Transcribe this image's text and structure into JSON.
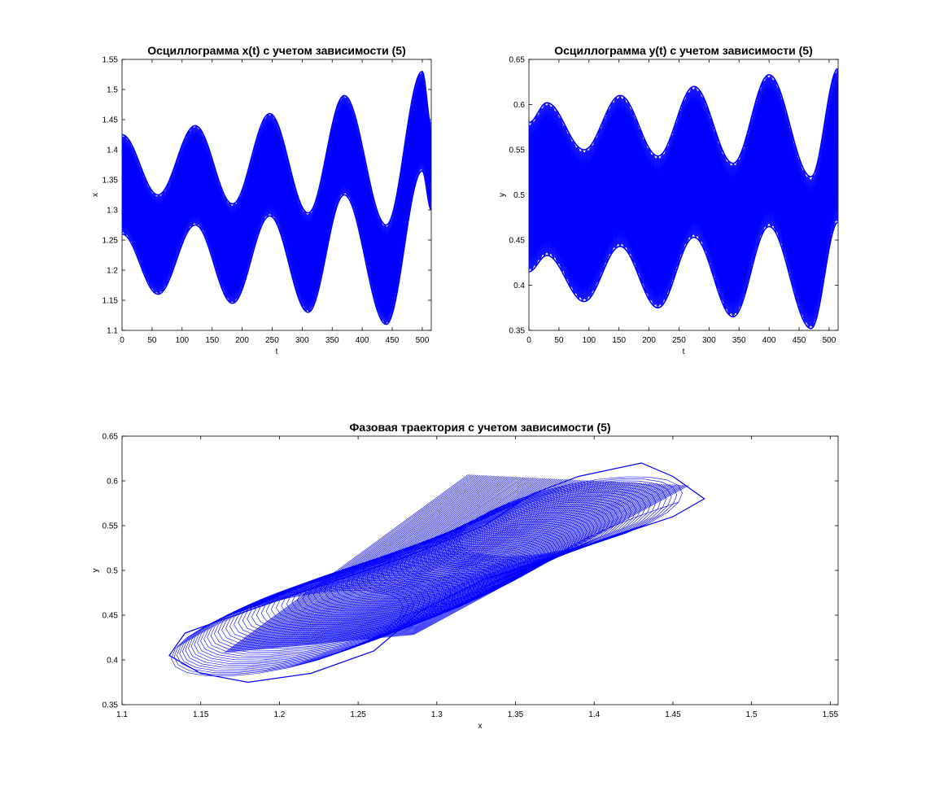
{
  "chart_data": [
    {
      "id": "xt",
      "type": "line",
      "title": "Осциллограмма x(t) с учетом зависимости (5)",
      "xlabel": "t",
      "ylabel": "x",
      "xlim": [
        0,
        515
      ],
      "ylim": [
        1.1,
        1.55
      ],
      "xticks": [
        0,
        50,
        100,
        150,
        200,
        250,
        300,
        350,
        400,
        450,
        500
      ],
      "yticks": [
        1.1,
        1.15,
        1.2,
        1.25,
        1.3,
        1.35,
        1.4,
        1.45,
        1.5,
        1.55
      ],
      "ytick_labels": [
        "1.1",
        "1.15",
        "1.2",
        "1.25",
        "1.3",
        "1.35",
        "1.4",
        "1.45",
        "1.5",
        "1.55"
      ],
      "series_color": "#0000ff",
      "envelope": {
        "t": [
          0,
          60,
          122,
          184,
          246,
          310,
          370,
          440,
          500,
          515
        ],
        "upper": [
          1.425,
          1.325,
          1.44,
          1.31,
          1.46,
          1.295,
          1.49,
          1.275,
          1.53,
          1.44
        ],
        "lower": [
          1.26,
          1.16,
          1.275,
          1.145,
          1.29,
          1.13,
          1.325,
          1.11,
          1.365,
          1.3
        ]
      }
    },
    {
      "id": "yt",
      "type": "line",
      "title": "Осциллограмма y(t) с учетом зависимости (5)",
      "xlabel": "t",
      "ylabel": "y",
      "xlim": [
        0,
        515
      ],
      "ylim": [
        0.35,
        0.65
      ],
      "xticks": [
        0,
        50,
        100,
        150,
        200,
        250,
        300,
        350,
        400,
        450,
        500
      ],
      "yticks": [
        0.35,
        0.4,
        0.45,
        0.5,
        0.55,
        0.6,
        0.65
      ],
      "ytick_labels": [
        "0.35",
        "0.4",
        "0.45",
        "0.5",
        "0.55",
        "0.6",
        "0.65"
      ],
      "series_color": "#0000ff",
      "envelope": {
        "t": [
          0,
          30,
          92,
          152,
          215,
          275,
          340,
          400,
          470,
          515
        ],
        "upper": [
          0.58,
          0.602,
          0.55,
          0.61,
          0.543,
          0.62,
          0.535,
          0.633,
          0.52,
          0.64
        ],
        "lower": [
          0.415,
          0.433,
          0.382,
          0.443,
          0.375,
          0.453,
          0.365,
          0.465,
          0.352,
          0.47
        ]
      }
    },
    {
      "id": "phase",
      "type": "line",
      "title": "Фазовая траектория с учетом зависимости (5)",
      "xlabel": "x",
      "ylabel": "y",
      "xlim": [
        1.1,
        1.555
      ],
      "ylim": [
        0.35,
        0.65
      ],
      "xticks": [
        1.1,
        1.15,
        1.2,
        1.25,
        1.3,
        1.35,
        1.4,
        1.45,
        1.5,
        1.55
      ],
      "yticks": [
        0.35,
        0.4,
        0.45,
        0.5,
        0.55,
        0.6,
        0.65
      ],
      "ytick_labels": [
        "0.35",
        "0.4",
        "0.45",
        "0.5",
        "0.55",
        "0.6",
        "0.65"
      ],
      "series_color": "#0000ff",
      "shape": {
        "x_range": [
          1.13,
          1.47
        ],
        "y_range": [
          0.375,
          0.62
        ]
      }
    }
  ]
}
